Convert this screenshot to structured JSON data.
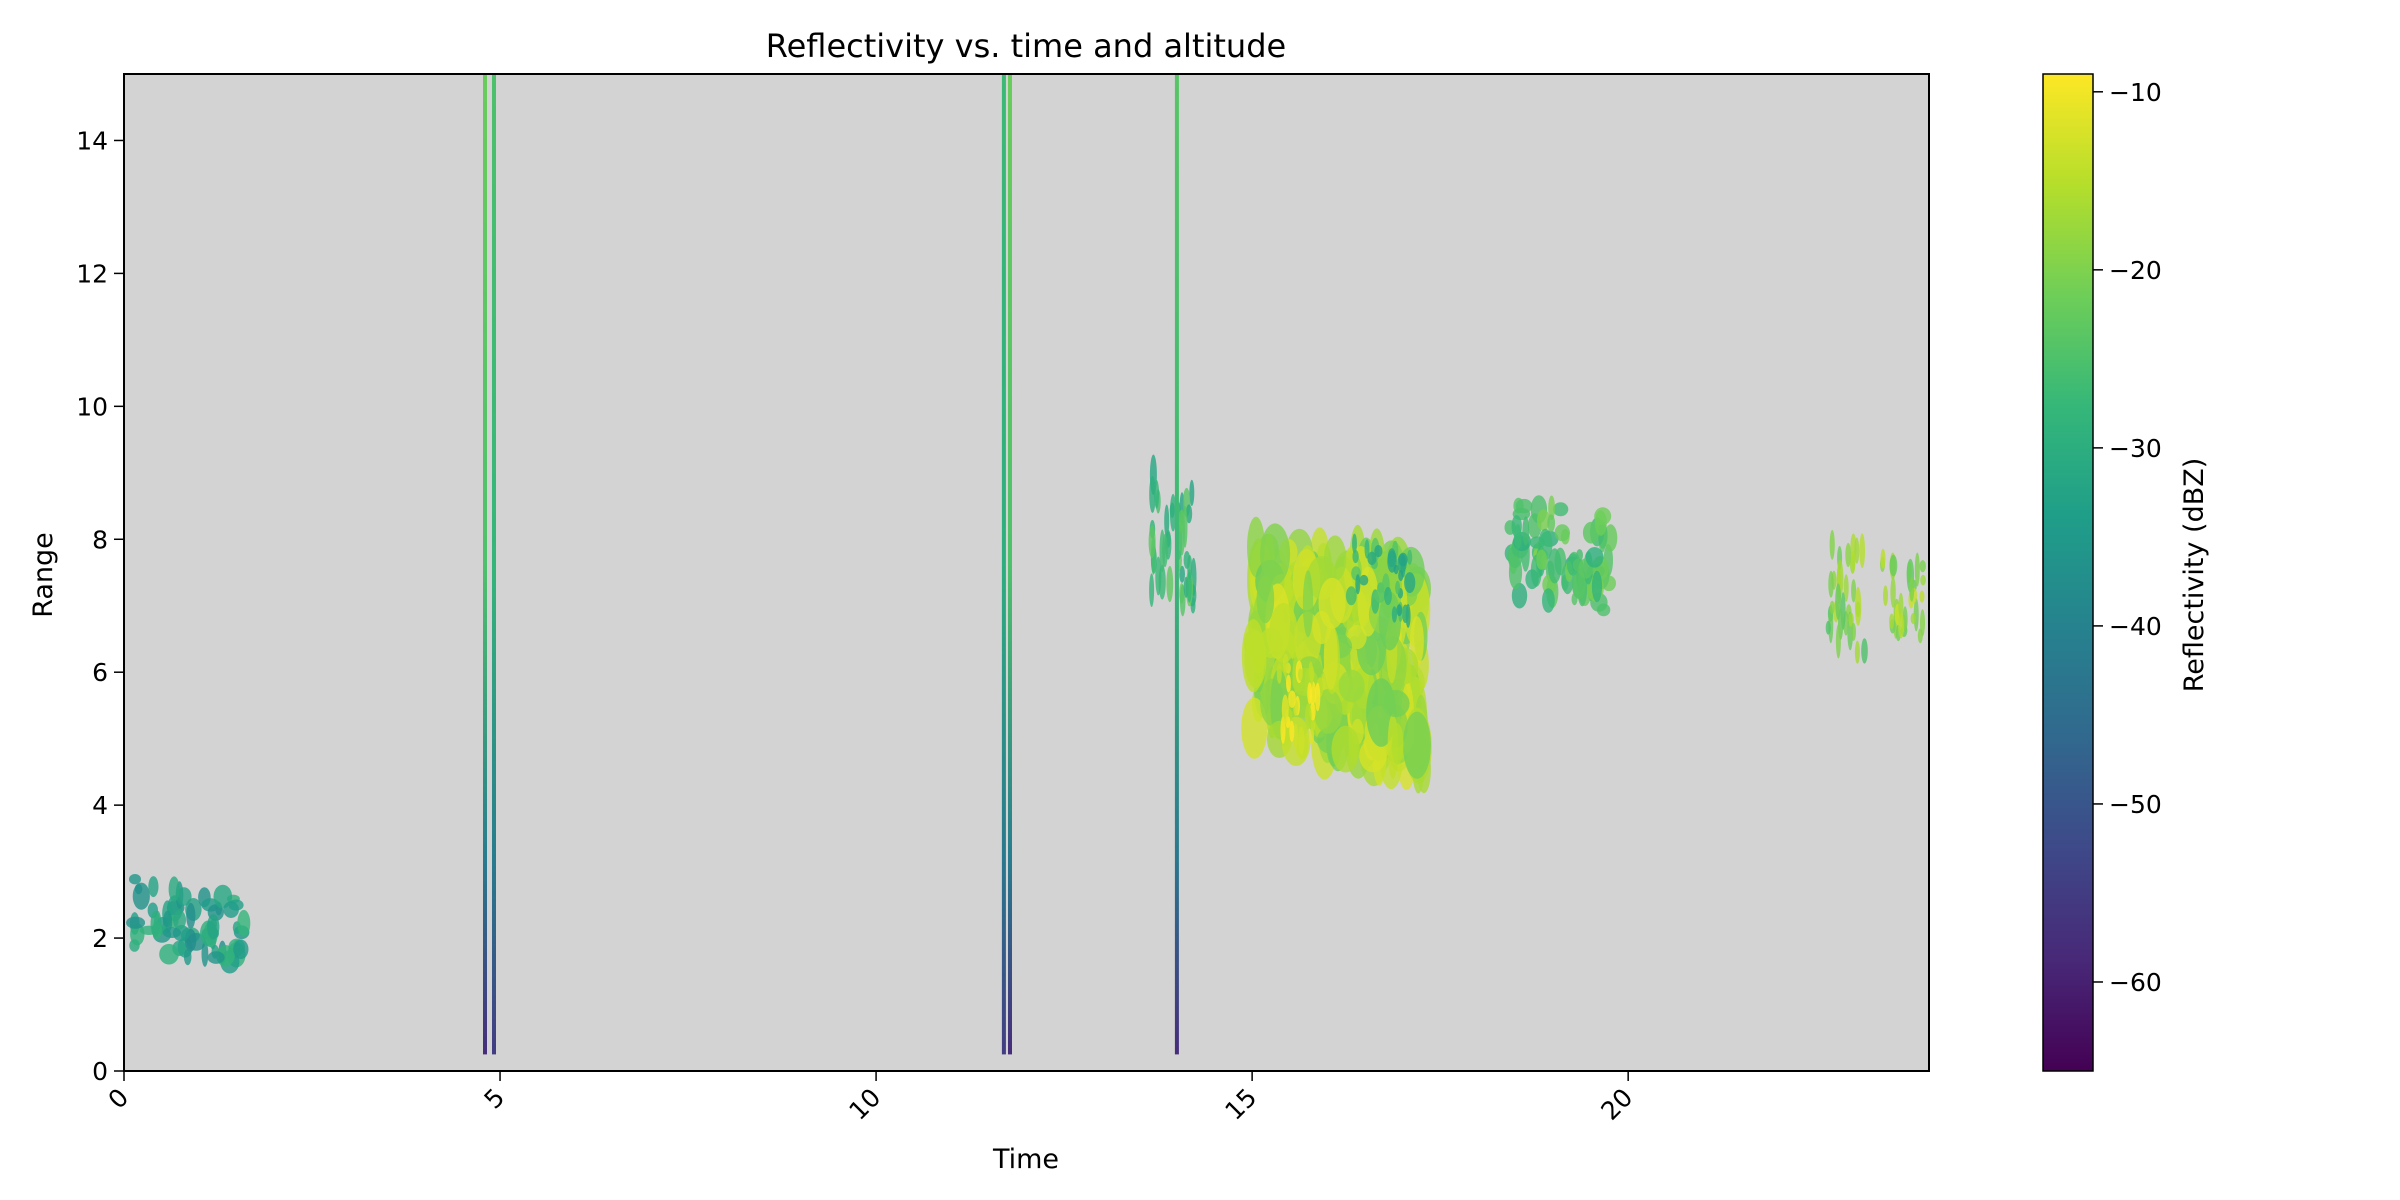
{
  "chart_data": {
    "type": "heatmap",
    "title": "Reflectivity vs. time and altitude",
    "xlabel": "Time",
    "ylabel": "Range",
    "xlim": [
      0,
      24
    ],
    "ylim": [
      0,
      15
    ],
    "x_ticks": [
      0,
      5,
      10,
      15,
      20
    ],
    "y_ticks": [
      0,
      2,
      4,
      6,
      8,
      10,
      12,
      14
    ],
    "x_tick_rotation_deg": 45,
    "grid": false,
    "background_color": "#d3d3d3",
    "colormap": "viridis",
    "colormap_stops": [
      "#440154",
      "#482878",
      "#3e4989",
      "#31688e",
      "#26828e",
      "#1f9e89",
      "#35b779",
      "#6ece58",
      "#b5de2b",
      "#fde725"
    ],
    "colorbar": {
      "label": "Reflectivity (dBZ)",
      "range": [
        -65,
        -9
      ],
      "ticks": [
        -10,
        -20,
        -30,
        -40,
        -50,
        -60
      ],
      "placement": "right"
    },
    "vertical_streaks": [
      {
        "t": 4.8,
        "z0": 0.25,
        "z1": 15,
        "v_bottom": -58,
        "v_top": -25
      },
      {
        "t": 4.92,
        "z0": 0.25,
        "z1": 15,
        "v_bottom": -55,
        "v_top": -28
      },
      {
        "t": 11.78,
        "z0": 0.25,
        "z1": 15,
        "v_bottom": -58,
        "v_top": -25
      },
      {
        "t": 11.7,
        "z0": 0.25,
        "z1": 15,
        "v_bottom": -55,
        "v_top": -30
      },
      {
        "t": 14.0,
        "z0": 0.25,
        "z1": 15,
        "v_bottom": -58,
        "v_top": -27
      }
    ],
    "echoes": [
      {
        "t0": 0.0,
        "t1": 1.75,
        "z0": 1.6,
        "z1": 2.9,
        "v": -33
      },
      {
        "t0": 13.6,
        "t1": 14.3,
        "z0": 6.9,
        "z1": 9.0,
        "v": -27
      },
      {
        "t0": 14.8,
        "t1": 17.5,
        "z0": 4.5,
        "z1": 8.1,
        "v": -17
      },
      {
        "t0": 15.3,
        "t1": 16.0,
        "z0": 4.8,
        "z1": 6.2,
        "v": -11
      },
      {
        "t0": 16.2,
        "t1": 17.2,
        "z0": 6.8,
        "z1": 8.0,
        "v": -28
      },
      {
        "t0": 18.3,
        "t1": 19.9,
        "z0": 6.9,
        "z1": 8.6,
        "v": -25
      },
      {
        "t0": 22.6,
        "t1": 23.2,
        "z0": 6.2,
        "z1": 8.1,
        "v": -20
      },
      {
        "t0": 23.3,
        "t1": 24.0,
        "z0": 6.3,
        "z1": 7.9,
        "v": -18
      }
    ]
  }
}
